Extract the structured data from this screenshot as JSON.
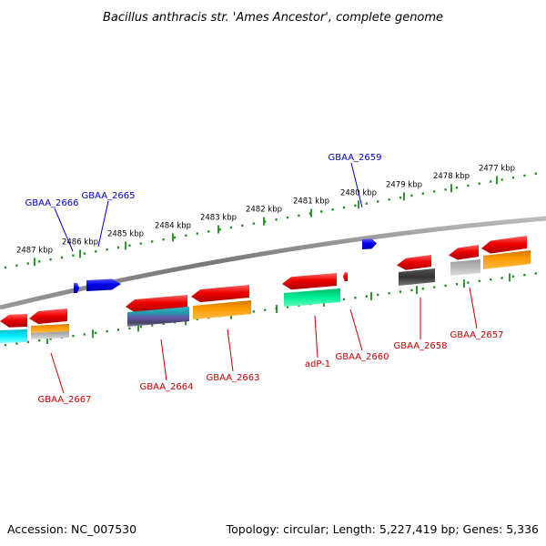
{
  "title": "Bacillus anthracis str. 'Ames Ancestor', complete genome",
  "accession": "Accession: NC_007530",
  "topology": "Topology: circular; Length: 5,227,419 bp; Genes: 5,336",
  "colors": {
    "backbone": "#8a8a8a",
    "tick": "#1a8a1a",
    "forward_label": "#0000cc",
    "reverse_label": "#cc0000",
    "forward_gene": "#0000ee",
    "reverse_gene": "#ee0000"
  },
  "scale_ticks": [
    {
      "label": "2487 kbp"
    },
    {
      "label": "2486 kbp"
    },
    {
      "label": "2485 kbp"
    },
    {
      "label": "2484 kbp"
    },
    {
      "label": "2483 kbp"
    },
    {
      "label": "2482 kbp"
    },
    {
      "label": "2481 kbp"
    },
    {
      "label": "2480 kbp"
    },
    {
      "label": "2479 kbp"
    },
    {
      "label": "2478 kbp"
    },
    {
      "label": "2477 kbp"
    }
  ],
  "forward_genes": [
    {
      "name": "GBAA_2666"
    },
    {
      "name": "GBAA_2665"
    },
    {
      "name": "GBAA_2659"
    }
  ],
  "reverse_genes": [
    {
      "name": "GBAA_2667"
    },
    {
      "name": "GBAA_2664"
    },
    {
      "name": "GBAA_2663"
    },
    {
      "name": "adP-1"
    },
    {
      "name": "GBAA_2660"
    },
    {
      "name": "GBAA_2658"
    },
    {
      "name": "GBAA_2657"
    }
  ]
}
